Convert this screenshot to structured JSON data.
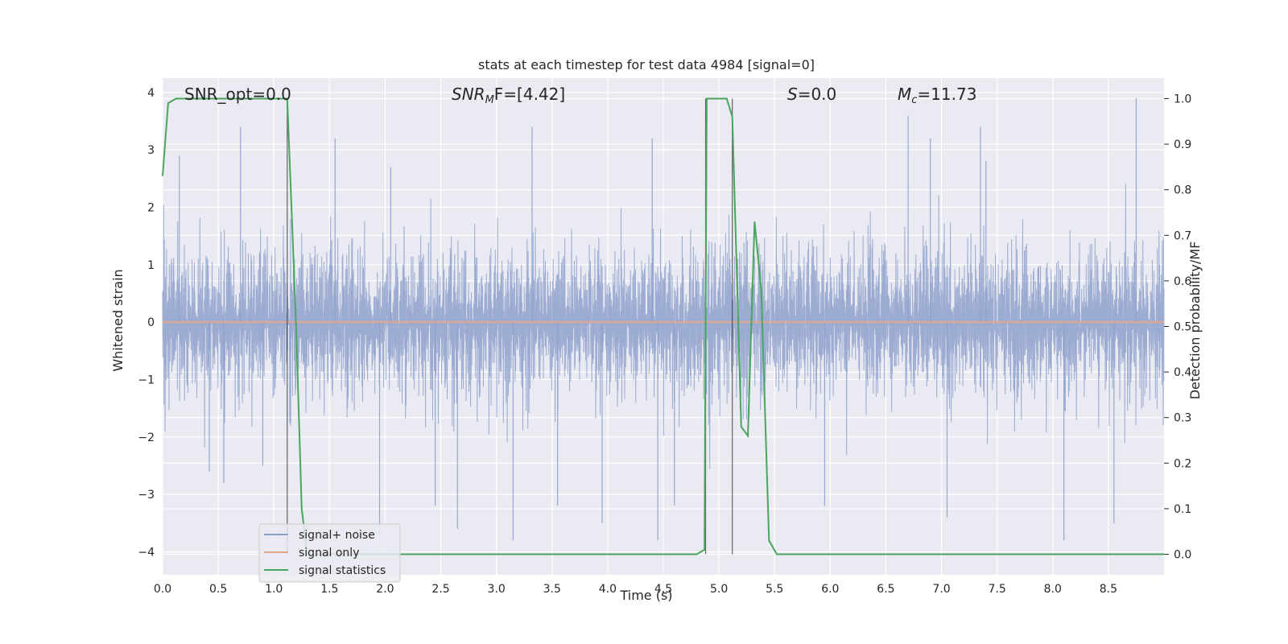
{
  "chart_data": {
    "type": "line",
    "title": "stats at each timestep for test data 4984 [signal=0]",
    "xlabel": "Time (s)",
    "ylabel": "Whitened strain",
    "ylabel_right": "Detection probability/MF",
    "xlim": [
      0,
      9
    ],
    "ylim": [
      -4.4,
      4.25
    ],
    "ylim_right": [
      -0.045,
      1.045
    ],
    "x_ticks": [
      "0.0",
      "0.5",
      "1.0",
      "1.5",
      "2.0",
      "2.5",
      "3.0",
      "3.5",
      "4.0",
      "4.5",
      "5.0",
      "5.5",
      "6.0",
      "6.5",
      "7.0",
      "7.5",
      "8.0",
      "8.5"
    ],
    "y_ticks": [
      "4",
      "3",
      "2",
      "1",
      "0",
      "−1",
      "−2",
      "−3",
      "−4"
    ],
    "y_ticks_right": [
      "1.0",
      "0.9",
      "0.8",
      "0.7",
      "0.6",
      "0.5",
      "0.4",
      "0.3",
      "0.2",
      "0.1",
      "0.0"
    ],
    "grid": true,
    "legend_position": "lower-left",
    "annotations": {
      "snr_opt": "SNR_opt=0.0",
      "snr_mf_base": "SNR",
      "snr_mf_sub": "M",
      "snr_mf_rest": "F=[4.42]",
      "s_var": "S",
      "s_rest": "=0.0",
      "mc_var": "M",
      "mc_sub": "c",
      "mc_rest": "=11.73"
    },
    "series": [
      {
        "name": "signal+ noise",
        "color": "#8da0cb",
        "description": "noise trace, amplitude roughly ±2.5 with peaks near 3.9",
        "peaks": [
          {
            "x": 0.15,
            "y": 2.9
          },
          {
            "x": 0.42,
            "y": -2.6
          },
          {
            "x": 0.55,
            "y": -2.8
          },
          {
            "x": 0.7,
            "y": 3.4
          },
          {
            "x": 0.9,
            "y": -2.5
          },
          {
            "x": 1.15,
            "y": -1.8
          },
          {
            "x": 1.55,
            "y": 3.2
          },
          {
            "x": 1.95,
            "y": -3.7
          },
          {
            "x": 2.05,
            "y": 2.7
          },
          {
            "x": 2.45,
            "y": -3.2
          },
          {
            "x": 2.65,
            "y": -3.6
          },
          {
            "x": 3.15,
            "y": -3.8
          },
          {
            "x": 3.32,
            "y": 3.4
          },
          {
            "x": 3.55,
            "y": -3.2
          },
          {
            "x": 3.95,
            "y": -3.5
          },
          {
            "x": 4.4,
            "y": 3.2
          },
          {
            "x": 4.45,
            "y": -3.8
          },
          {
            "x": 4.6,
            "y": -3.2
          },
          {
            "x": 5.95,
            "y": -3.2
          },
          {
            "x": 6.7,
            "y": 3.6
          },
          {
            "x": 6.9,
            "y": 3.2
          },
          {
            "x": 7.05,
            "y": -3.4
          },
          {
            "x": 7.35,
            "y": 3.4
          },
          {
            "x": 7.4,
            "y": 2.8
          },
          {
            "x": 8.1,
            "y": -3.8
          },
          {
            "x": 8.75,
            "y": 3.9
          },
          {
            "x": 8.55,
            "y": -3.5
          }
        ]
      },
      {
        "name": "signal only",
        "color": "#e5a58a",
        "x": [
          0,
          9
        ],
        "y": [
          0,
          0
        ]
      },
      {
        "name": "signal statistics",
        "color": "#4aa55d",
        "axis": "right",
        "x": [
          0,
          0.05,
          0.12,
          0.2,
          1.1,
          1.12,
          1.2,
          1.25,
          1.3,
          4.8,
          4.87,
          4.89,
          4.95,
          5.07,
          5.12,
          5.2,
          5.26,
          5.32,
          5.38,
          5.45,
          5.52,
          9.0
        ],
        "y": [
          0.83,
          0.99,
          1.0,
          1.0,
          1.0,
          1.0,
          0.5,
          0.1,
          0.0,
          0.0,
          0.01,
          1.0,
          1.0,
          1.0,
          0.96,
          0.28,
          0.26,
          0.73,
          0.58,
          0.03,
          0.0,
          0.0
        ]
      }
    ],
    "vertical_lines": [
      1.12,
      4.88,
      5.12
    ]
  }
}
